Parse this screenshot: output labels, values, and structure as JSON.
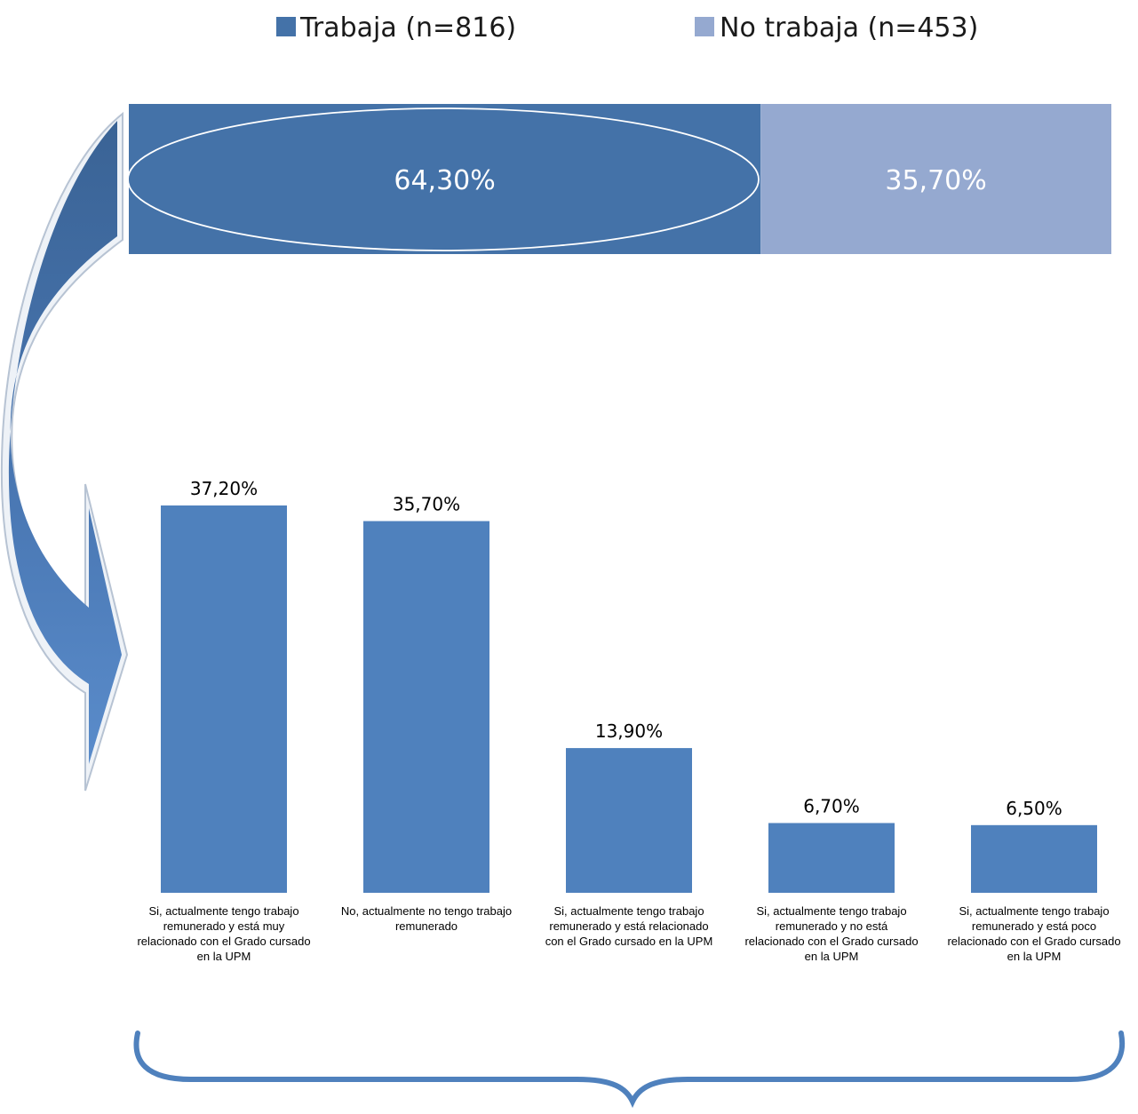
{
  "chart_data": [
    {
      "type": "bar",
      "orientation": "horizontal-stacked",
      "series": [
        {
          "name": "Trabaja (n=816)",
          "value": 64.3,
          "label": "64,30%",
          "color": "#4472a8"
        },
        {
          "name": "No trabaja (n=453)",
          "value": 35.7,
          "label": "35,70%",
          "color": "#95a9d0"
        }
      ],
      "legend": "top"
    },
    {
      "type": "bar",
      "categories": [
        "Si, actualmente tengo trabajo remunerado y está muy relacionado con el Grado cursado en la UPM",
        "No, actualmente no tengo trabajo remunerado",
        "Si, actualmente tengo trabajo remunerado y está relacionado con el Grado cursado en la UPM",
        "Si, actualmente tengo trabajo remunerado y no está relacionado con el Grado cursado en la UPM",
        "Si, actualmente tengo trabajo remunerado y está poco relacionado con el Grado cursado en la UPM"
      ],
      "category_lines": [
        [
          "Si, actualmente tengo trabajo",
          "remunerado y está muy",
          "relacionado con  el Grado cursado",
          "en la UPM"
        ],
        [
          "No, actualmente no tengo trabajo",
          "remunerado"
        ],
        [
          "Si, actualmente tengo trabajo",
          "remunerado y está  relacionado",
          "con el Grado cursado en la UPM"
        ],
        [
          "Si, actualmente tengo trabajo",
          "remunerado y no está",
          "relacionado con  el Grado cursado",
          "en la UPM"
        ],
        [
          "Si, actualmente tengo trabajo",
          "remunerado y está  poco",
          "relacionado con  el Grado cursado",
          "en la UPM"
        ]
      ],
      "values": [
        37.2,
        35.7,
        13.9,
        6.7,
        6.5
      ],
      "value_labels": [
        "37,20%",
        "35,70%",
        "13,90%",
        "6,70%",
        "6,50%"
      ],
      "ylim": [
        0,
        37.2
      ],
      "grid": false,
      "bar_color": "#4f81bd"
    }
  ]
}
